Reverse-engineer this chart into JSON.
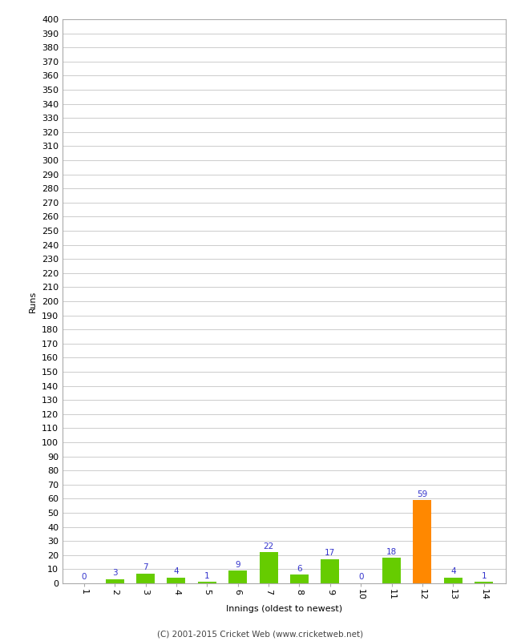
{
  "xlabel": "Innings (oldest to newest)",
  "ylabel": "Runs",
  "categories": [
    1,
    2,
    3,
    4,
    5,
    6,
    7,
    8,
    9,
    10,
    11,
    12,
    13,
    14
  ],
  "values": [
    0,
    3,
    7,
    4,
    1,
    9,
    22,
    6,
    17,
    0,
    18,
    59,
    4,
    1
  ],
  "bar_colors": [
    "#66cc00",
    "#66cc00",
    "#66cc00",
    "#66cc00",
    "#66cc00",
    "#66cc00",
    "#66cc00",
    "#66cc00",
    "#66cc00",
    "#66cc00",
    "#66cc00",
    "#ff8800",
    "#66cc00",
    "#66cc00"
  ],
  "ylim": [
    0,
    400
  ],
  "yticks": [
    0,
    10,
    20,
    30,
    40,
    50,
    60,
    70,
    80,
    90,
    100,
    110,
    120,
    130,
    140,
    150,
    160,
    170,
    180,
    190,
    200,
    210,
    220,
    230,
    240,
    250,
    260,
    270,
    280,
    290,
    300,
    310,
    320,
    330,
    340,
    350,
    360,
    370,
    380,
    390,
    400
  ],
  "label_color": "#3333cc",
  "label_fontsize": 7.5,
  "axis_tick_fontsize": 8,
  "xlabel_fontsize": 8,
  "ylabel_fontsize": 8,
  "background_color": "#ffffff",
  "plot_bg_color": "#ffffff",
  "grid_color": "#cccccc",
  "footer": "(C) 2001-2015 Cricket Web (www.cricketweb.net)",
  "footer_fontsize": 7.5
}
